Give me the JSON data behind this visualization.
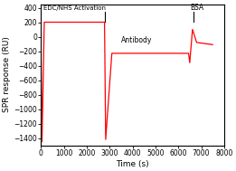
{
  "title": "",
  "xlabel": "Time (s)",
  "ylabel": "SPR response (RU)",
  "xlim": [
    0,
    8000
  ],
  "ylim": [
    -1500,
    450
  ],
  "yticks": [
    400,
    200,
    0,
    -200,
    -400,
    -600,
    -800,
    -1000,
    -1200,
    -1400
  ],
  "xticks": [
    0,
    1000,
    2000,
    3000,
    4000,
    5000,
    6000,
    7000,
    8000
  ],
  "line_color": "#ff0000",
  "annotation_edc": "EDC/NHS Activation",
  "annotation_antibody": "Antibody",
  "annotation_bsa": "BSA",
  "background": "#ffffff"
}
